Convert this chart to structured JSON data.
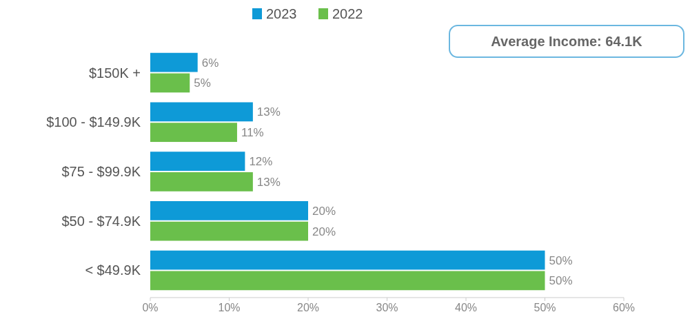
{
  "chart_data": {
    "type": "bar",
    "orientation": "horizontal",
    "categories": [
      "$150K +",
      "$100 - $149.9K",
      "$75 - $99.9K",
      "$50 - $74.9K",
      "< $49.9K"
    ],
    "series": [
      {
        "name": "2023",
        "color": "#0e9ad7",
        "values": [
          6,
          13,
          12,
          20,
          50
        ],
        "value_labels": [
          "6%",
          "13%",
          "12%",
          "20%",
          "50%"
        ]
      },
      {
        "name": "2022",
        "color": "#6abf4b",
        "values": [
          5,
          11,
          13,
          20,
          50
        ],
        "value_labels": [
          "5%",
          "11%",
          "13%",
          "20%",
          "50%"
        ]
      }
    ],
    "xlim": [
      0,
      60
    ],
    "xticks": [
      {
        "value": 0,
        "label": "0%"
      },
      {
        "value": 10,
        "label": "10%"
      },
      {
        "value": 20,
        "label": "20%"
      },
      {
        "value": 30,
        "label": "30%"
      },
      {
        "value": 40,
        "label": "40%"
      },
      {
        "value": 50,
        "label": "50%"
      },
      {
        "value": 60,
        "label": "60%"
      }
    ],
    "legend": "top",
    "grid": false,
    "annotations": [
      "Average Income: 64.1K"
    ]
  }
}
